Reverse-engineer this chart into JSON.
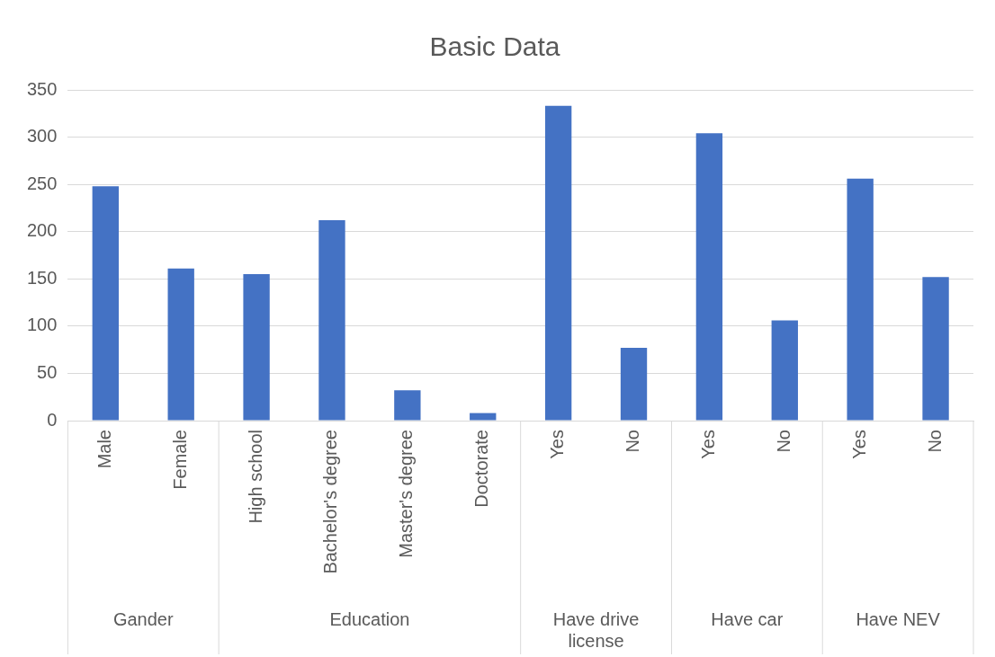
{
  "chart_data": {
    "type": "bar",
    "title": "Basic Data",
    "categories": [
      "Male",
      "Female",
      "High school",
      "Bachelor's degree",
      "Master's degree",
      "Doctorate",
      "Yes",
      "No",
      "Yes",
      "No",
      "Yes",
      "No"
    ],
    "values": [
      248,
      161,
      155,
      212,
      32,
      8,
      333,
      77,
      304,
      106,
      256,
      152
    ],
    "color": "#4472c4",
    "ylim": [
      0,
      350
    ],
    "yticks": [
      0,
      50,
      100,
      150,
      200,
      250,
      300,
      350
    ],
    "grid": "y",
    "annotations": [
      "Gander",
      "Education",
      "Have drive license",
      "Have car",
      "Have NEV"
    ]
  }
}
